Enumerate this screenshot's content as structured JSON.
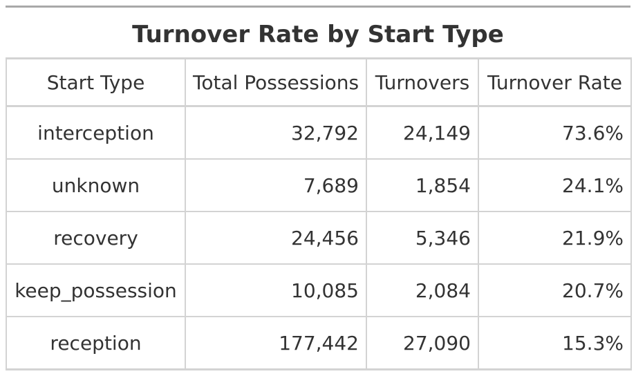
{
  "chart_data": {
    "type": "table",
    "title": "Turnover Rate by Start Type",
    "columns": [
      "Start Type",
      "Total Possessions",
      "Turnovers",
      "Turnover Rate"
    ],
    "rows": [
      [
        "interception",
        "32,792",
        "24,149",
        "73.6%"
      ],
      [
        "unknown",
        "7,689",
        "1,854",
        "24.1%"
      ],
      [
        "recovery",
        "24,456",
        "5,346",
        "21.9%"
      ],
      [
        "keep_possession",
        "10,085",
        "2,084",
        "20.7%"
      ],
      [
        "reception",
        "177,442",
        "27,090",
        "15.3%"
      ]
    ]
  }
}
